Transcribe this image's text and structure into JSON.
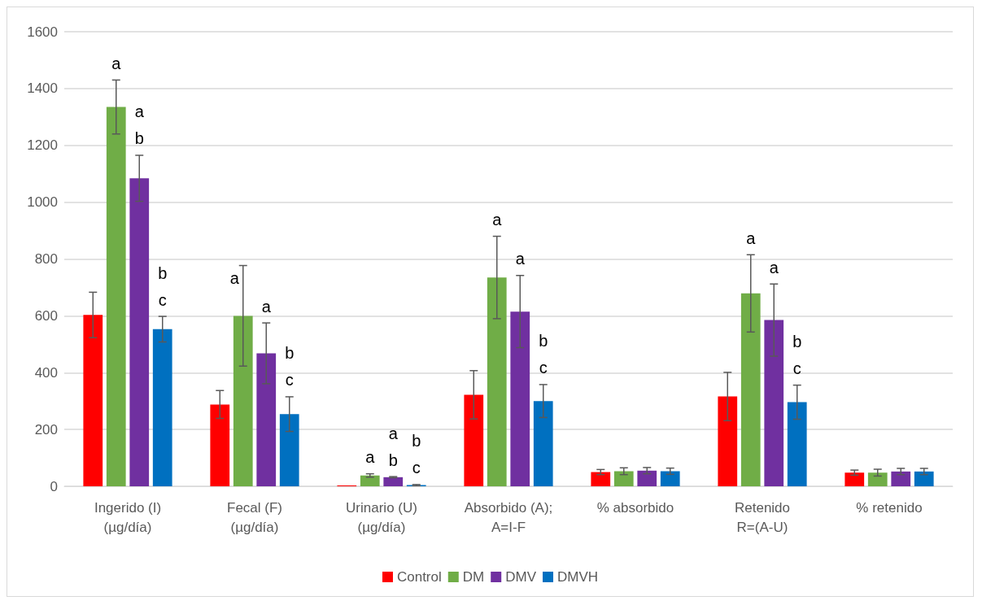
{
  "chart_data": {
    "type": "bar",
    "categories": [
      "Ingerido (I)\n(µg/día)",
      "Fecal (F)\n(µg/día)",
      "Urinario (U)\n(µg/día)",
      "Absorbido (A);\nA=I-F",
      "% absorbido",
      "Retenido\nR=(A-U)",
      "% retenido"
    ],
    "series": [
      {
        "name": "Control",
        "color": "#ff0000",
        "values": [
          603,
          288,
          3,
          322,
          50,
          316,
          48
        ],
        "errors": [
          80,
          49,
          null,
          85,
          9,
          85,
          9
        ]
      },
      {
        "name": "DM",
        "color": "#70ad47",
        "values": [
          1335,
          600,
          38,
          735,
          53,
          679,
          48
        ],
        "errors": [
          95,
          177,
          6,
          145,
          12,
          136,
          12
        ],
        "value_labels": [
          "a",
          "a",
          "a",
          "a",
          null,
          "a",
          null
        ]
      },
      {
        "name": "DMV",
        "color": "#7030a0",
        "values": [
          1084,
          468,
          32,
          615,
          55,
          585,
          52
        ],
        "errors": [
          81,
          107,
          2,
          127,
          11,
          127,
          11
        ],
        "value_labels": [
          "a\nb",
          "a",
          "a\nb",
          "a",
          null,
          "a",
          null
        ]
      },
      {
        "name": "DMVH",
        "color": "#0070c0",
        "values": [
          553,
          254,
          4,
          300,
          53,
          296,
          52
        ],
        "errors": [
          45,
          61,
          2,
          58,
          11,
          60,
          11
        ],
        "value_labels": [
          "b\nc",
          "b\nc",
          "b\nc",
          "b\nc",
          null,
          "b\nc",
          null
        ]
      }
    ],
    "ylim": [
      0,
      1600
    ],
    "yticks": [
      0,
      200,
      400,
      600,
      800,
      1000,
      1200,
      1400,
      1600
    ],
    "grid": "y",
    "legend": "bottom"
  }
}
